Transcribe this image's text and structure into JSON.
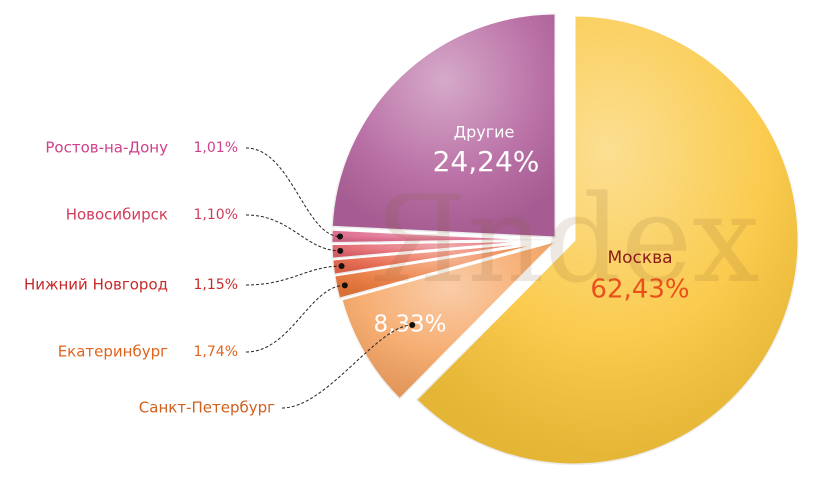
{
  "chart_data": {
    "type": "pie",
    "categories": [
      "Москва",
      "Санкт-Петербург",
      "Екатеринбург",
      "Нижний Новгород",
      "Новосибирск",
      "Ростов-на-Дону",
      "Другие"
    ],
    "values": [
      62.43,
      8.33,
      1.74,
      1.15,
      1.1,
      1.01,
      24.24
    ],
    "value_labels": [
      "62,43%",
      "8,33%",
      "1,74%",
      "1,15%",
      "1,10%",
      "1,01%",
      "24,24%"
    ],
    "colors": [
      "#f9c53a",
      "#f5a462",
      "#ec7a3c",
      "#e9684c",
      "#e2626a",
      "#dd6688",
      "#b4649e"
    ],
    "watermark": "Яndex"
  }
}
